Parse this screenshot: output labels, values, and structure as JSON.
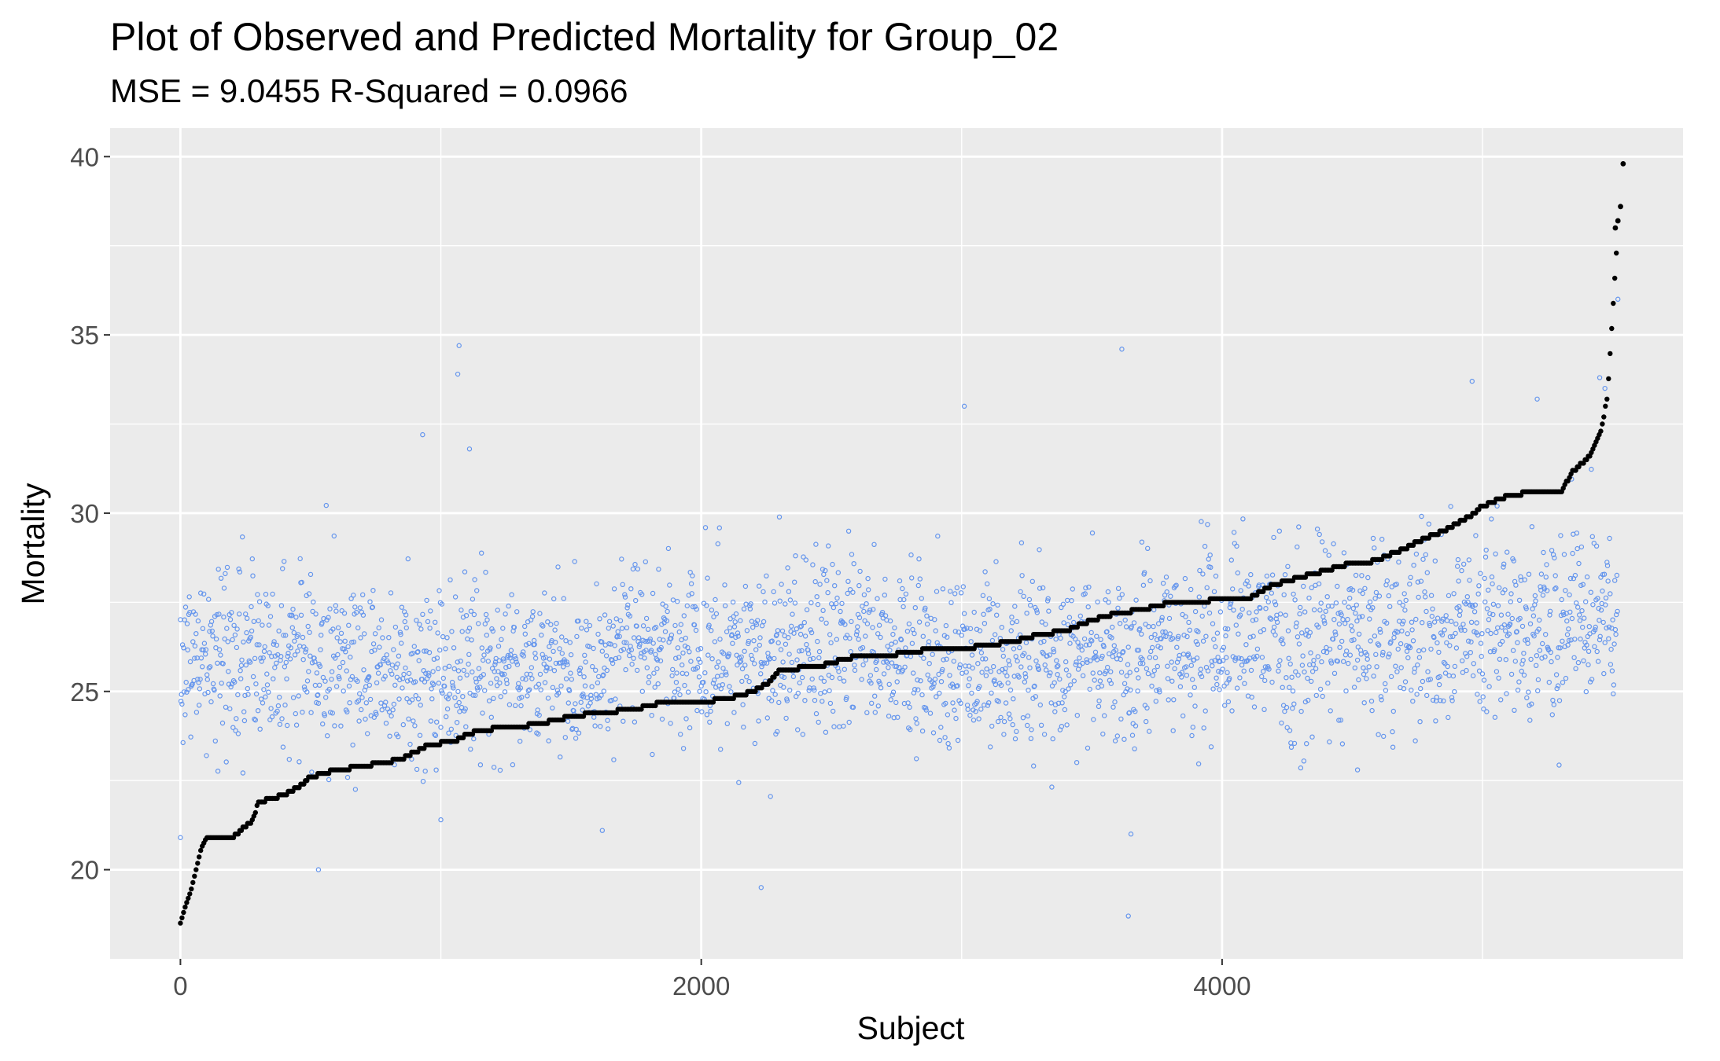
{
  "chart_data": {
    "type": "scatter",
    "title": "Plot of Observed and Predicted Mortality for Group_02",
    "subtitle": "MSE = 9.0455     R-Squared = 0.0966",
    "xlabel": "Subject",
    "ylabel": "Mortality",
    "xlim": [
      -270,
      5770
    ],
    "ylim": [
      17.5,
      40.8
    ],
    "x_ticks": [
      0,
      2000,
      4000
    ],
    "x_tick_labels": [
      "0",
      "2000",
      "4000"
    ],
    "y_ticks": [
      20,
      25,
      30,
      35,
      40
    ],
    "y_tick_labels": [
      "20",
      "25",
      "30",
      "35",
      "40"
    ],
    "grid": true,
    "legend": "none",
    "n_subjects": 5520,
    "series": [
      {
        "role": "observed",
        "marker": "hollow-circle",
        "color": "#6495ED",
        "scatter_band": {
          "x": [
            0,
            300,
            600,
            900,
            1200,
            1500,
            1800,
            2100,
            2400,
            2700,
            3000,
            3300,
            3600,
            3900,
            4200,
            4500,
            4800,
            5100,
            5400,
            5520
          ],
          "y_center": [
            25.9,
            25.9,
            26.0,
            25.4,
            25.9,
            25.5,
            26.5,
            25.9,
            26.4,
            26.3,
            25.8,
            25.9,
            26.0,
            26.2,
            26.6,
            26.5,
            26.8,
            26.8,
            26.9,
            27.0
          ],
          "y_spread": [
            1.2,
            1.4,
            1.3,
            1.2,
            1.2,
            1.1,
            1.2,
            1.2,
            1.3,
            1.2,
            1.2,
            1.3,
            1.2,
            1.2,
            1.4,
            1.3,
            1.3,
            1.3,
            1.3,
            1.3
          ]
        },
        "outliers": [
          {
            "x": 0,
            "y": 20.9
          },
          {
            "x": 530,
            "y": 20.0
          },
          {
            "x": 930,
            "y": 32.2
          },
          {
            "x": 1070,
            "y": 34.7
          },
          {
            "x": 1065,
            "y": 33.9
          },
          {
            "x": 1110,
            "y": 31.8
          },
          {
            "x": 1620,
            "y": 21.1
          },
          {
            "x": 2230,
            "y": 19.5
          },
          {
            "x": 3010,
            "y": 33.0
          },
          {
            "x": 3615,
            "y": 34.6
          },
          {
            "x": 3640,
            "y": 18.7
          },
          {
            "x": 3650,
            "y": 21.0
          },
          {
            "x": 4960,
            "y": 33.7
          },
          {
            "x": 5210,
            "y": 33.2
          },
          {
            "x": 5450,
            "y": 33.8
          },
          {
            "x": 5470,
            "y": 33.5
          },
          {
            "x": 5520,
            "y": 36.0
          },
          {
            "x": 4520,
            "y": 22.8
          },
          {
            "x": 1000,
            "y": 21.4
          }
        ]
      },
      {
        "role": "predicted",
        "marker": "filled-circle",
        "color": "#000000",
        "x": [
          0,
          20,
          40,
          60,
          80,
          100,
          200,
          280,
          300,
          400,
          450,
          500,
          600,
          700,
          850,
          950,
          1050,
          1100,
          1150,
          1250,
          1300,
          1450,
          1500,
          1600,
          1750,
          1850,
          2000,
          2100,
          2200,
          2250,
          2300,
          2450,
          2500,
          2600,
          2700,
          2800,
          2900,
          3000,
          3100,
          3200,
          3300,
          3400,
          3500,
          3600,
          3700,
          3800,
          3900,
          4000,
          4100,
          4200,
          4300,
          4400,
          4500,
          4550,
          4600,
          4700,
          4750,
          4850,
          4950,
          5000,
          5100,
          5200,
          5300,
          5350,
          5400,
          5420,
          5450,
          5460,
          5480,
          5520
        ],
        "y": [
          18.5,
          19.0,
          19.4,
          20.0,
          20.6,
          20.9,
          20.9,
          21.4,
          21.9,
          22.1,
          22.3,
          22.6,
          22.8,
          22.9,
          23.1,
          23.5,
          23.6,
          23.8,
          23.9,
          24.0,
          24.0,
          24.2,
          24.3,
          24.4,
          24.5,
          24.7,
          24.7,
          24.8,
          25.0,
          25.2,
          25.6,
          25.7,
          25.8,
          26.0,
          26.0,
          26.1,
          26.2,
          26.2,
          26.3,
          26.4,
          26.6,
          26.7,
          27.0,
          27.2,
          27.3,
          27.5,
          27.5,
          27.6,
          27.6,
          28.0,
          28.2,
          28.4,
          28.6,
          28.6,
          28.7,
          29.0,
          29.2,
          29.5,
          29.9,
          30.2,
          30.5,
          30.6,
          30.6,
          31.2,
          31.5,
          31.7,
          32.2,
          32.5,
          33.3,
          38.0
        ]
      }
    ],
    "high_markers": [
      {
        "x": 5510,
        "y": 38.0
      },
      {
        "x": 5520,
        "y": 38.2
      },
      {
        "x": 5530,
        "y": 38.6
      },
      {
        "x": 5540,
        "y": 39.8
      }
    ]
  }
}
